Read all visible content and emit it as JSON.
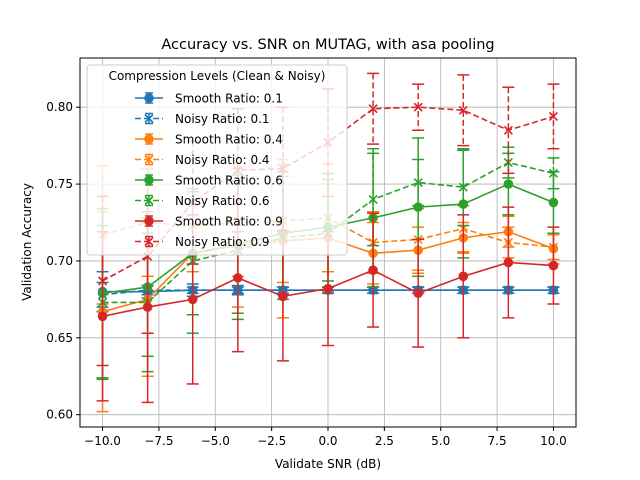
{
  "chart_data": {
    "type": "line",
    "title": "Accuracy vs. SNR on MUTAG, with asa pooling",
    "xlabel": "Validate SNR (dB)",
    "ylabel": "Validation Accuracy",
    "xlim": [
      -11,
      11
    ],
    "ylim": [
      0.592,
      0.832
    ],
    "xticks": [
      -10.0,
      -7.5,
      -5.0,
      -2.5,
      0.0,
      2.5,
      5.0,
      7.5,
      10.0
    ],
    "xtick_labels": [
      "−10.0",
      "−7.5",
      "−5.0",
      "−2.5",
      "0.0",
      "2.5",
      "5.0",
      "7.5",
      "10.0"
    ],
    "yticks": [
      0.6,
      0.65,
      0.7,
      0.75,
      0.8
    ],
    "ytick_labels": [
      "0.60",
      "0.65",
      "0.70",
      "0.75",
      "0.80"
    ],
    "grid": true,
    "legend": {
      "title": "Compression Levels (Clean & Noisy)",
      "placement": "top-left"
    },
    "x": [
      -10,
      -8,
      -6,
      -4,
      -2,
      0,
      2,
      4,
      6,
      8,
      10
    ],
    "series": [
      {
        "name": "Smooth Ratio: 0.1",
        "color": "#1f77b4",
        "dashed": false,
        "marker": "circle",
        "values": [
          0.68,
          0.68,
          0.681,
          0.681,
          0.681,
          0.681,
          0.681,
          0.681,
          0.681,
          0.681,
          0.681
        ],
        "err": [
          0.013,
          0.004,
          0.004,
          0.003,
          0.002,
          0.002,
          0.002,
          0.002,
          0.002,
          0.002,
          0.002
        ]
      },
      {
        "name": "Noisy Ratio: 0.1",
        "color": "#1f77b4",
        "dashed": true,
        "marker": "x",
        "values": [
          0.678,
          0.681,
          0.681,
          0.681,
          0.681,
          0.681,
          0.681,
          0.681,
          0.681,
          0.681,
          0.681
        ],
        "err": [
          0.008,
          0.003,
          0.002,
          0.002,
          0.002,
          0.002,
          0.002,
          0.002,
          0.002,
          0.002,
          0.002
        ]
      },
      {
        "name": "Smooth Ratio: 0.4",
        "color": "#ff7f0e",
        "dashed": false,
        "marker": "circle",
        "values": [
          0.667,
          0.675,
          0.705,
          0.71,
          0.713,
          0.715,
          0.705,
          0.707,
          0.715,
          0.719,
          0.708
        ],
        "err": [
          0.065,
          0.05,
          0.04,
          0.04,
          0.05,
          0.035,
          0.02,
          0.015,
          0.01,
          0.01,
          0.01
        ]
      },
      {
        "name": "Noisy Ratio: 0.4",
        "color": "#ff7f0e",
        "dashed": true,
        "marker": "x",
        "values": [
          0.717,
          0.725,
          0.723,
          0.725,
          0.726,
          0.728,
          0.712,
          0.714,
          0.721,
          0.712,
          0.709
        ],
        "err": [
          0.045,
          0.035,
          0.03,
          0.035,
          0.04,
          0.035,
          0.02,
          0.02,
          0.015,
          0.01,
          0.008
        ]
      },
      {
        "name": "Smooth Ratio: 0.6",
        "color": "#2ca02c",
        "dashed": false,
        "marker": "circle",
        "values": [
          0.679,
          0.683,
          0.705,
          0.711,
          0.718,
          0.722,
          0.728,
          0.735,
          0.737,
          0.75,
          0.738
        ],
        "err": [
          0.055,
          0.045,
          0.04,
          0.045,
          0.04,
          0.035,
          0.045,
          0.045,
          0.035,
          0.02,
          0.02
        ]
      },
      {
        "name": "Noisy Ratio: 0.6",
        "color": "#2ca02c",
        "dashed": true,
        "marker": "x",
        "values": [
          0.673,
          0.673,
          0.7,
          0.707,
          0.715,
          0.718,
          0.74,
          0.751,
          0.748,
          0.764,
          0.757
        ],
        "err": [
          0.05,
          0.045,
          0.047,
          0.045,
          0.04,
          0.035,
          0.03,
          0.015,
          0.025,
          0.01,
          0.01
        ]
      },
      {
        "name": "Smooth Ratio: 0.9",
        "color": "#d62728",
        "dashed": false,
        "marker": "circle",
        "values": [
          0.664,
          0.67,
          0.675,
          0.689,
          0.677,
          0.682,
          0.694,
          0.679,
          0.69,
          0.699,
          0.697
        ],
        "err": [
          0.055,
          0.062,
          0.055,
          0.048,
          0.042,
          0.037,
          0.037,
          0.035,
          0.04,
          0.036,
          0.025
        ]
      },
      {
        "name": "Noisy Ratio: 0.9",
        "color": "#d62728",
        "dashed": true,
        "marker": "x",
        "values": [
          0.687,
          0.703,
          0.738,
          0.759,
          0.76,
          0.777,
          0.799,
          0.8,
          0.798,
          0.785,
          0.794
        ],
        "err": [
          0.055,
          0.05,
          0.04,
          0.04,
          0.04,
          0.035,
          0.023,
          0.015,
          0.023,
          0.028,
          0.021
        ]
      }
    ]
  }
}
